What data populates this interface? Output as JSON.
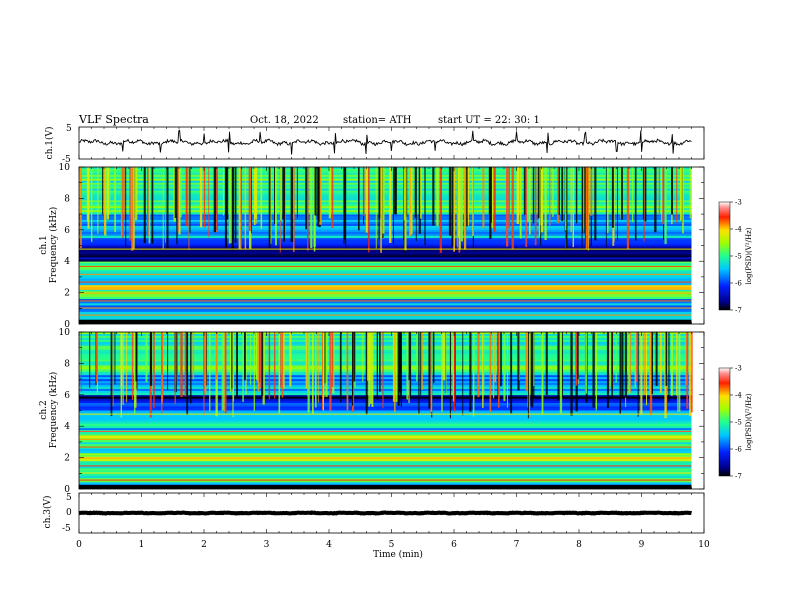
{
  "header": {
    "title": "VLF  Spectra",
    "date": "Oct. 18, 2022",
    "station": "station= ATH",
    "start": "start  UT  =    22: 30: 1"
  },
  "chart_data": [
    {
      "type": "line",
      "name": "ch1-waveform",
      "ylabel": "ch.1(V)",
      "ylim": [
        -5,
        5
      ],
      "yticks": [
        "5",
        "-5"
      ],
      "xlim": [
        0,
        10
      ],
      "x_end": 9.8,
      "baseline": 0.2,
      "amplitude": 1.2,
      "spikes": [
        0.7,
        1.3,
        1.6,
        2.0,
        2.4,
        2.9,
        3.4,
        4.1,
        4.6,
        5.0,
        5.7,
        6.3,
        7.0,
        7.5,
        8.1,
        8.6,
        9.0,
        9.5
      ]
    },
    {
      "type": "heatmap",
      "name": "ch1-spectrogram",
      "ylabel_line1": "ch.1",
      "ylabel_line2": "Frequency  (kHz)",
      "ylim": [
        0,
        10
      ],
      "yticks": [
        "0",
        "2",
        "4",
        "6",
        "8",
        "10"
      ],
      "xlim": [
        0,
        10
      ],
      "x_end": 9.8,
      "colorbar": {
        "label": "log(PSD)(V²/Hz)",
        "range": [
          -7,
          -3
        ],
        "ticks": [
          "-3",
          "-4",
          "-5",
          "-6",
          "-7"
        ]
      },
      "bands": [
        {
          "f0": 0.0,
          "f1": 0.3,
          "level": -6.9
        },
        {
          "f0": 0.3,
          "f1": 0.9,
          "level": -5.6
        },
        {
          "f0": 0.9,
          "f1": 1.6,
          "level": -5.8
        },
        {
          "f0": 1.6,
          "f1": 2.2,
          "level": -4.8
        },
        {
          "f0": 2.2,
          "f1": 2.5,
          "level": -4.3
        },
        {
          "f0": 2.5,
          "f1": 3.5,
          "level": -5.5
        },
        {
          "f0": 3.5,
          "f1": 4.0,
          "level": -4.9
        },
        {
          "f0": 4.0,
          "f1": 4.6,
          "level": -6.7
        },
        {
          "f0": 4.6,
          "f1": 5.5,
          "level": -6.3
        },
        {
          "f0": 5.5,
          "f1": 7.0,
          "level": -5.6
        },
        {
          "f0": 7.0,
          "f1": 10.0,
          "level": -5.0
        }
      ]
    },
    {
      "type": "heatmap",
      "name": "ch2-spectrogram",
      "ylabel_line1": "ch.2",
      "ylabel_line2": "Frequency  (kHz)",
      "ylim": [
        0,
        10
      ],
      "yticks": [
        "0",
        "2",
        "4",
        "6",
        "8",
        "10"
      ],
      "xlim": [
        0,
        10
      ],
      "x_end": 9.8,
      "colorbar": {
        "label": "log(PSD)(V²/Hz)",
        "range": [
          -7,
          -3
        ],
        "ticks": [
          "-3",
          "-4",
          "-5",
          "-6",
          "-7"
        ]
      },
      "bands": [
        {
          "f0": 0.0,
          "f1": 0.3,
          "level": -6.9
        },
        {
          "f0": 0.3,
          "f1": 1.2,
          "level": -5.1
        },
        {
          "f0": 1.2,
          "f1": 1.8,
          "level": -5.0
        },
        {
          "f0": 1.8,
          "f1": 2.3,
          "level": -4.4
        },
        {
          "f0": 2.3,
          "f1": 3.0,
          "level": -5.3
        },
        {
          "f0": 3.0,
          "f1": 3.5,
          "level": -4.6
        },
        {
          "f0": 3.5,
          "f1": 4.5,
          "level": -5.4
        },
        {
          "f0": 4.5,
          "f1": 5.5,
          "level": -5.8
        },
        {
          "f0": 5.5,
          "f1": 6.0,
          "level": -6.6
        },
        {
          "f0": 6.0,
          "f1": 7.5,
          "level": -5.6
        },
        {
          "f0": 7.5,
          "f1": 10.0,
          "level": -5.0
        }
      ]
    },
    {
      "type": "line",
      "name": "ch3-waveform",
      "ylabel": "ch.3(V)",
      "ylim": [
        -5,
        5
      ],
      "yticks": [
        "5",
        "0",
        "-5"
      ],
      "xlim": [
        0,
        10
      ],
      "x_end": 9.8,
      "baseline": 0.0,
      "amplitude": 0.15,
      "spikes": [],
      "xlabel": "Time  (min)",
      "xticks": [
        "0",
        "1",
        "2",
        "3",
        "4",
        "5",
        "6",
        "7",
        "8",
        "9",
        "10"
      ]
    }
  ]
}
